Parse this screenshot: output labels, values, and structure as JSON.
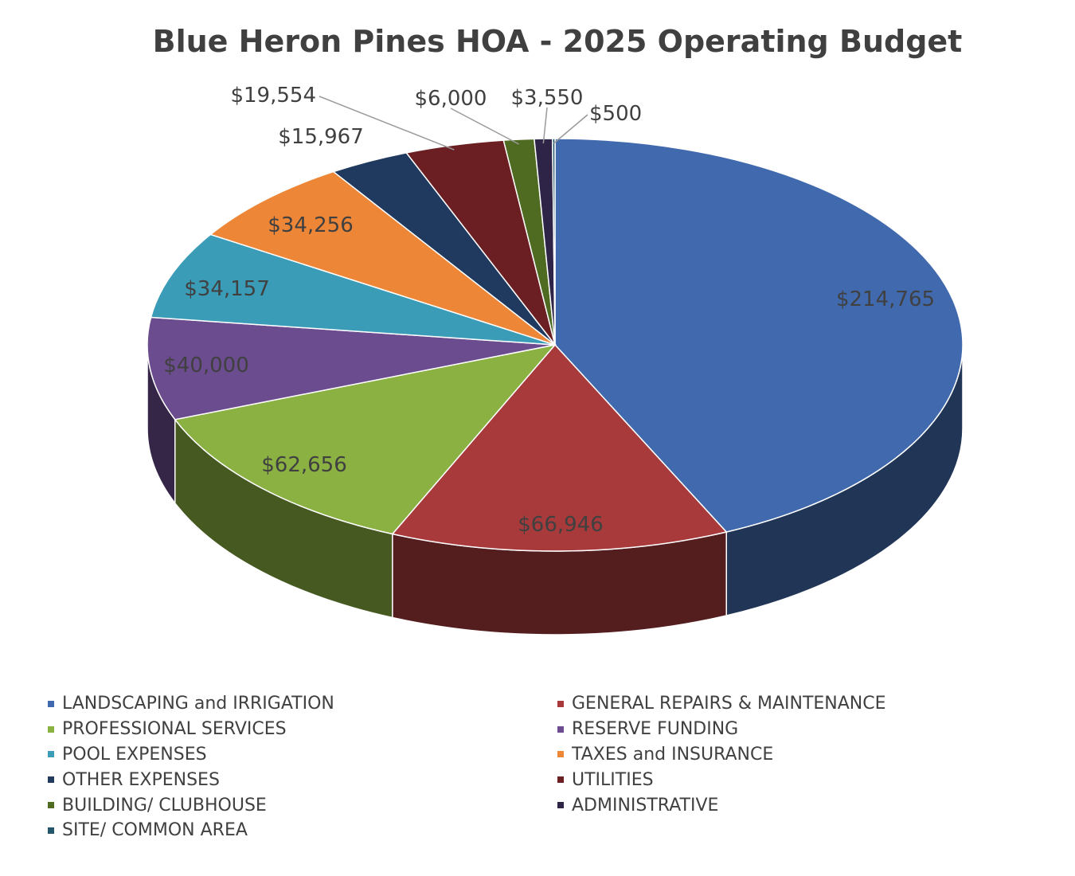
{
  "chart_data": {
    "type": "pie",
    "title": "Blue Heron Pines HOA - 2025 Operating Budget",
    "slices": [
      {
        "label": "LANDSCAPING and IRRIGATION",
        "value": 214765,
        "value_label": "$214,765",
        "color": "#4169AE"
      },
      {
        "label": "GENERAL REPAIRS & MAINTENANCE",
        "value": 66946,
        "value_label": "$66,946",
        "color": "#A83A3C"
      },
      {
        "label": "PROFESSIONAL SERVICES",
        "value": 62656,
        "value_label": "$62,656",
        "color": "#8AB142"
      },
      {
        "label": "RESERVE FUNDING",
        "value": 40000,
        "value_label": "$40,000",
        "color": "#6A4C8F"
      },
      {
        "label": "POOL EXPENSES",
        "value": 34157,
        "value_label": "$34,157",
        "color": "#3B9CB8"
      },
      {
        "label": "TAXES and INSURANCE",
        "value": 34256,
        "value_label": "$34,256",
        "color": "#EE8637"
      },
      {
        "label": "OTHER EXPENSES",
        "value": 15967,
        "value_label": "$15,967",
        "color": "#1F3A5E"
      },
      {
        "label": "UTILITIES",
        "value": 19554,
        "value_label": "$19,554",
        "color": "#6B1F22"
      },
      {
        "label": "BUILDING/ CLUBHOUSE",
        "value": 6000,
        "value_label": "$6,000",
        "color": "#4F6B22"
      },
      {
        "label": "ADMINISTRATIVE",
        "value": 3550,
        "value_label": "$3,550",
        "color": "#2E2448"
      },
      {
        "label": "SITE/ COMMON AREA",
        "value": 500,
        "value_label": "$500",
        "color": "#22566A"
      }
    ],
    "legend_placement": "bottom",
    "legend_columns": [
      [
        "LANDSCAPING and IRRIGATION",
        "PROFESSIONAL SERVICES",
        "POOL EXPENSES",
        "OTHER EXPENSES",
        "BUILDING/ CLUBHOUSE",
        "SITE/ COMMON AREA"
      ],
      [
        "GENERAL REPAIRS & MAINTENANCE",
        "RESERVE FUNDING",
        "TAXES and INSURANCE",
        "UTILITIES",
        "ADMINISTRATIVE"
      ]
    ],
    "style": "3d-tilted"
  }
}
